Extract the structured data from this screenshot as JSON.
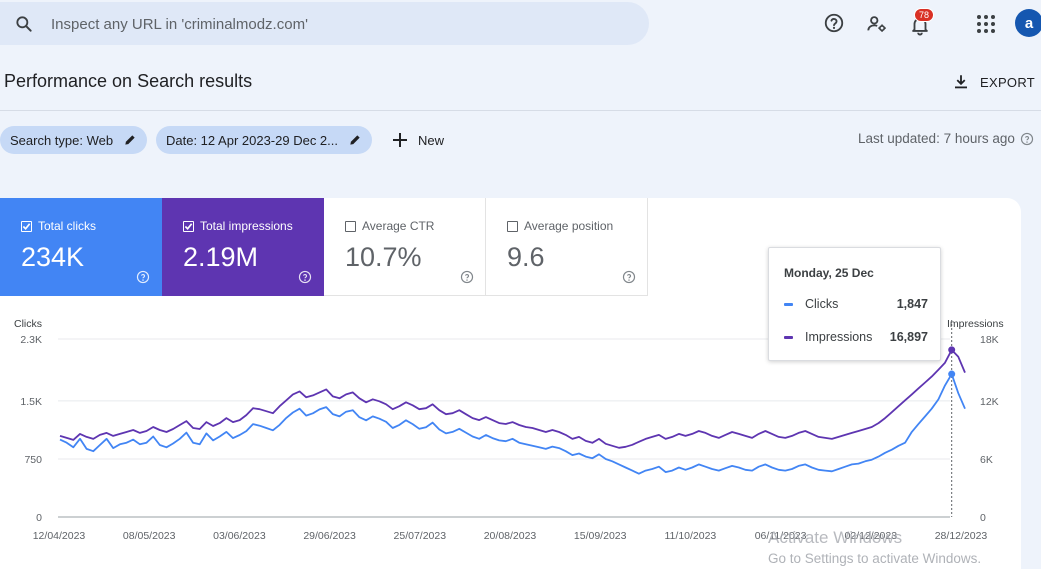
{
  "search": {
    "placeholder": "Inspect any URL in 'criminalmodz.com'"
  },
  "topbar": {
    "notification_count": "78",
    "avatar_letter": "a"
  },
  "page": {
    "title": "Performance on Search results",
    "export_label": "EXPORT"
  },
  "filters": {
    "search_type": "Search type: Web",
    "date": "Date: 12 Apr 2023-29 Dec 2...",
    "new_label": "New",
    "last_updated": "Last updated: 7 hours ago"
  },
  "metrics": {
    "clicks": {
      "label": "Total clicks",
      "value": "234K"
    },
    "impressions": {
      "label": "Total impressions",
      "value": "2.19M"
    },
    "ctr": {
      "label": "Average CTR",
      "value": "10.7%"
    },
    "position": {
      "label": "Average position",
      "value": "9.6"
    }
  },
  "colors": {
    "clicks": "#4285f4",
    "impressions": "#5e35b1"
  },
  "tooltip": {
    "date": "Monday, 25 Dec",
    "clicks_label": "Clicks",
    "clicks_value": "1,847",
    "impressions_label": "Impressions",
    "impressions_value": "16,897"
  },
  "watermark": {
    "line1": "Activate Windows",
    "line2": "Go to Settings to activate Windows."
  },
  "chart_data": {
    "type": "line",
    "left_axis_label": "Clicks",
    "right_axis_label": "Impressions",
    "left_ticks": [
      "0",
      "750",
      "1.5K",
      "2.3K"
    ],
    "right_ticks": [
      "0",
      "6K",
      "12K",
      "18K"
    ],
    "x_tick_labels": [
      "12/04/2023",
      "08/05/2023",
      "03/06/2023",
      "29/06/2023",
      "25/07/2023",
      "20/08/2023",
      "15/09/2023",
      "11/10/2023",
      "06/11/2023",
      "02/12/2023",
      "28/12/2023"
    ],
    "left_ylim": [
      0,
      2300
    ],
    "right_ylim": [
      0,
      18000
    ],
    "grid": true,
    "series": [
      {
        "name": "Clicks",
        "values": [
          1000,
          960,
          900,
          1010,
          880,
          850,
          930,
          1010,
          890,
          940,
          960,
          1000,
          940,
          960,
          1040,
          930,
          900,
          950,
          1010,
          1090,
          960,
          940,
          1080,
          990,
          1040,
          1100,
          1020,
          1060,
          1110,
          1200,
          1180,
          1150,
          1120,
          1190,
          1280,
          1350,
          1400,
          1310,
          1340,
          1390,
          1420,
          1330,
          1300,
          1360,
          1380,
          1290,
          1250,
          1300,
          1270,
          1230,
          1150,
          1190,
          1250,
          1200,
          1140,
          1160,
          1220,
          1130,
          1080,
          1100,
          1140,
          1090,
          1040,
          1010,
          1060,
          1020,
          990,
          980,
          1010,
          960,
          940,
          920,
          900,
          880,
          910,
          890,
          850,
          800,
          820,
          780,
          760,
          810,
          750,
          720,
          680,
          640,
          600,
          560,
          600,
          620,
          650,
          580,
          600,
          640,
          610,
          640,
          680,
          650,
          620,
          600,
          630,
          660,
          640,
          610,
          600,
          650,
          680,
          640,
          610,
          600,
          620,
          660,
          680,
          640,
          610,
          600,
          590,
          620,
          650,
          680,
          690,
          720,
          740,
          780,
          830,
          870,
          920,
          960,
          1100,
          1200,
          1300,
          1400,
          1520,
          1700,
          1847,
          1600,
          1400
        ]
      },
      {
        "name": "Impressions",
        "values": [
          8200,
          8000,
          7800,
          8400,
          8100,
          7900,
          8300,
          8500,
          8200,
          8400,
          8600,
          8800,
          8500,
          8700,
          9100,
          8800,
          8600,
          8900,
          9300,
          9700,
          9000,
          8900,
          9600,
          9200,
          9500,
          10000,
          9600,
          9800,
          10300,
          11000,
          10900,
          10700,
          10500,
          11200,
          11800,
          12400,
          12700,
          12100,
          12300,
          12600,
          12900,
          12200,
          12000,
          12400,
          12600,
          12000,
          11600,
          11900,
          11700,
          11400,
          10900,
          11200,
          11600,
          11300,
          10900,
          11000,
          11400,
          10800,
          10400,
          10500,
          10800,
          10400,
          10000,
          9800,
          10100,
          9800,
          9500,
          9400,
          9600,
          9300,
          9100,
          9000,
          8800,
          8600,
          8800,
          8600,
          8300,
          7900,
          8100,
          7700,
          7500,
          7900,
          7400,
          7200,
          7000,
          7100,
          7300,
          7600,
          7900,
          8100,
          8300,
          7900,
          8100,
          8400,
          8200,
          8400,
          8700,
          8500,
          8200,
          8000,
          8300,
          8600,
          8400,
          8200,
          8000,
          8400,
          8700,
          8400,
          8100,
          8000,
          8200,
          8500,
          8700,
          8400,
          8100,
          8000,
          7900,
          8100,
          8300,
          8500,
          8700,
          8900,
          9100,
          9500,
          10000,
          10600,
          11200,
          11800,
          12400,
          13000,
          13600,
          14200,
          14900,
          15600,
          16897,
          16200,
          14600
        ]
      }
    ]
  }
}
